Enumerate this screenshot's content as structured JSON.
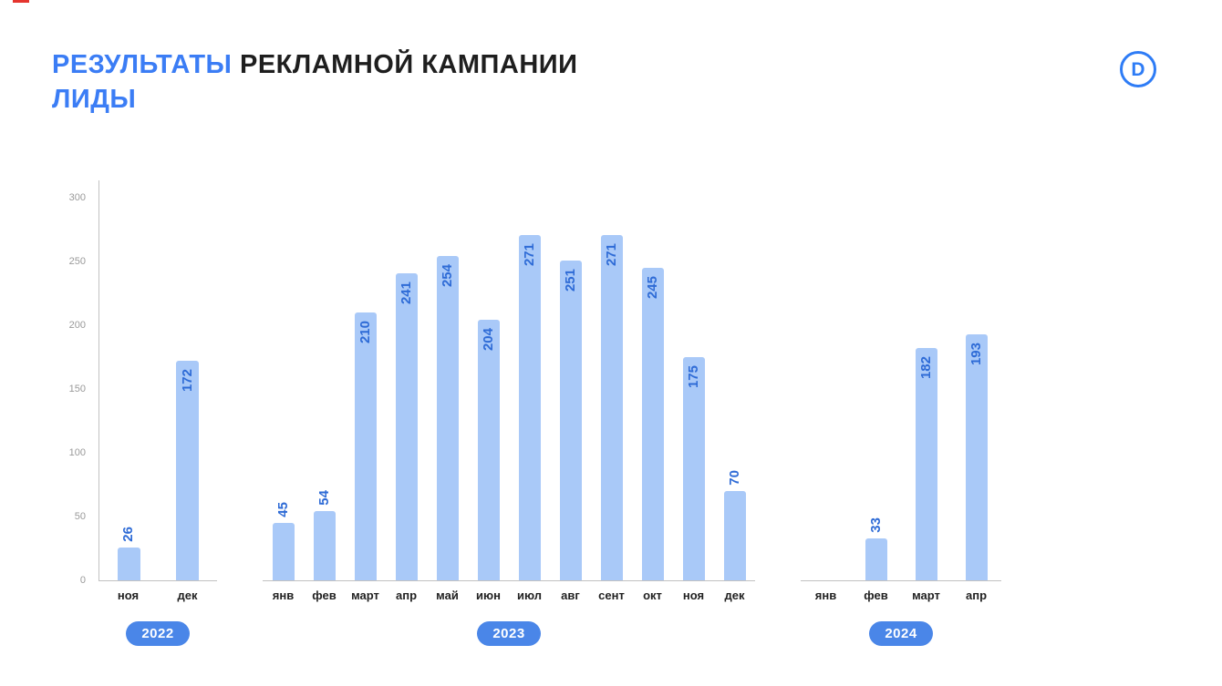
{
  "page": {
    "title": {
      "highlight": "РЕЗУЛЬТАТЫ",
      "rest": " РЕКЛАМНОЙ КАМПАНИИ",
      "line2": "ЛИДЫ"
    },
    "logo_letter": "D",
    "accent_color": "#3b7df5"
  },
  "chart_data": {
    "type": "bar",
    "title": "РЕЗУЛЬТАТЫ РЕКЛАМНОЙ КАМПАНИИ — ЛИДЫ",
    "xlabel": "",
    "ylabel": "",
    "ylim": [
      0,
      300
    ],
    "yticks": [
      0,
      50,
      100,
      150,
      200,
      250,
      300
    ],
    "grid": false,
    "bar_color": "#a9c9f8",
    "value_label_color": "#2e6bd6",
    "year_badge_color": "#4a86e8",
    "groups": [
      {
        "year": "2022",
        "categories": [
          "ноя",
          "дек"
        ],
        "values": [
          26,
          172
        ]
      },
      {
        "year": "2023",
        "categories": [
          "янв",
          "фев",
          "март",
          "апр",
          "май",
          "июн",
          "июл",
          "авг",
          "сент",
          "окт",
          "ноя",
          "дек"
        ],
        "values": [
          45,
          54,
          210,
          241,
          254,
          204,
          271,
          251,
          271,
          245,
          175,
          70
        ]
      },
      {
        "year": "2024",
        "categories": [
          "янв",
          "фев",
          "март",
          "апр"
        ],
        "values": [
          null,
          33,
          182,
          193
        ]
      }
    ]
  }
}
